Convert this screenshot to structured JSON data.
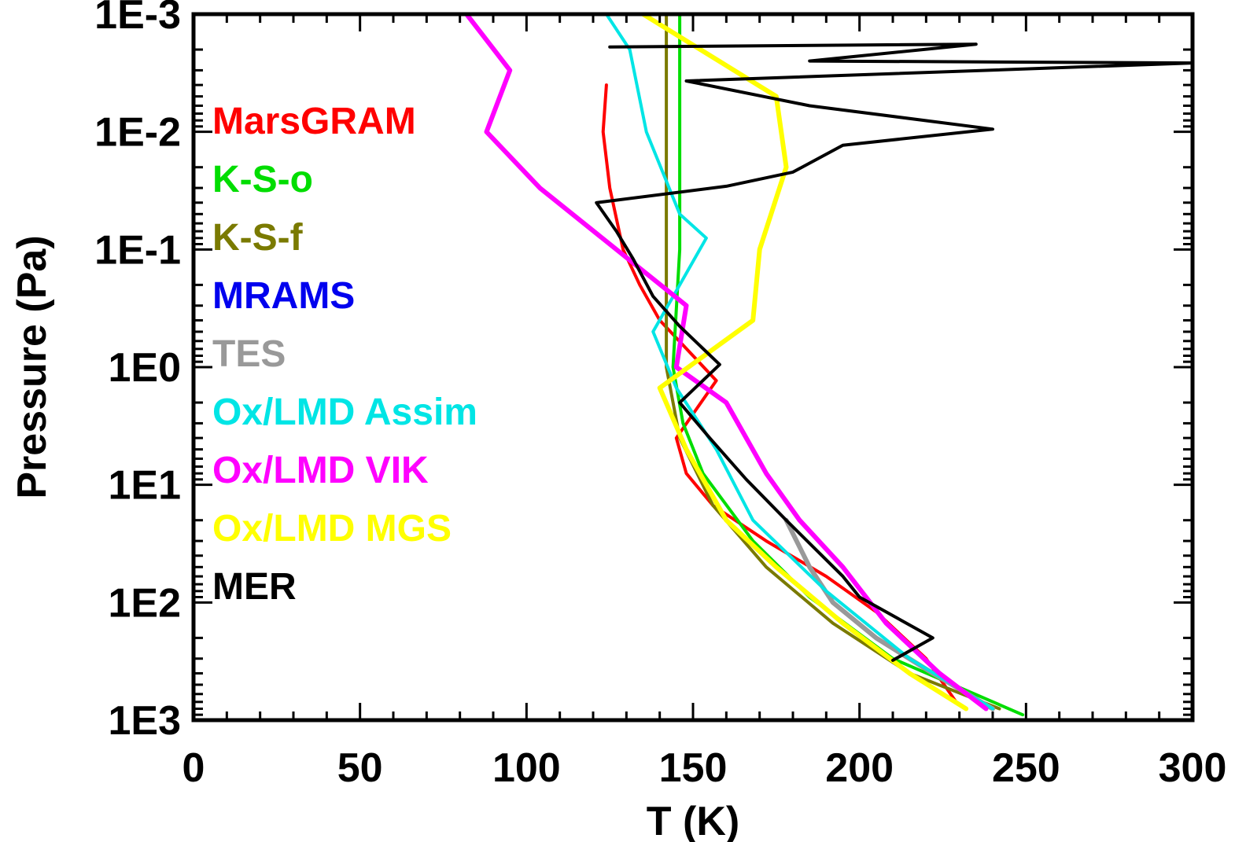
{
  "chart_data": {
    "type": "line",
    "title": "",
    "xlabel": "T (K)",
    "ylabel": "Pressure (Pa)",
    "xlim": [
      0,
      300
    ],
    "ylim": [
      1000,
      0.001
    ],
    "y_scale": "log",
    "y_reversed": true,
    "xticks": [
      0,
      50,
      100,
      150,
      200,
      250,
      300
    ],
    "xtick_labels": [
      "0",
      "50",
      "100",
      "150",
      "200",
      "250",
      "300"
    ],
    "yticks": [
      0.001,
      0.01,
      0.1,
      1,
      10,
      100,
      1000
    ],
    "ytick_labels": [
      "1E-3",
      "1E-2",
      "1E-1",
      "1E0",
      "1E1",
      "1E2",
      "1E3"
    ],
    "grid": false,
    "legend_position": "left",
    "series": [
      {
        "name": "MarsGRAM",
        "color": "#ff0000",
        "points": [
          [
            124,
            0.004
          ],
          [
            123,
            0.01
          ],
          [
            125,
            0.03
          ],
          [
            129,
            0.1
          ],
          [
            134,
            0.2
          ],
          [
            140,
            0.4
          ],
          [
            150,
            0.8
          ],
          [
            157,
            1.3
          ],
          [
            150,
            2.5
          ],
          [
            145,
            4
          ],
          [
            148,
            8
          ],
          [
            156,
            15
          ],
          [
            172,
            30
          ],
          [
            190,
            60
          ],
          [
            205,
            120
          ],
          [
            220,
            300
          ],
          [
            229,
            700
          ]
        ]
      },
      {
        "name": "K-S-o",
        "color": "#00dd00",
        "points": [
          [
            146,
            0.001
          ],
          [
            146,
            0.01
          ],
          [
            146,
            0.1
          ],
          [
            144,
            1
          ],
          [
            147,
            3
          ],
          [
            153,
            8
          ],
          [
            168,
            30
          ],
          [
            185,
            90
          ],
          [
            210,
            300
          ],
          [
            249,
            900
          ]
        ]
      },
      {
        "name": "K-S-f",
        "color": "#7a7a00",
        "points": [
          [
            142,
            0.001
          ],
          [
            142,
            0.01
          ],
          [
            142,
            0.1
          ],
          [
            142,
            1
          ],
          [
            146,
            4
          ],
          [
            156,
            15
          ],
          [
            172,
            50
          ],
          [
            192,
            150
          ],
          [
            215,
            400
          ],
          [
            242,
            800
          ]
        ]
      },
      {
        "name": "MRAMS",
        "color": "#0000ee",
        "points": []
      },
      {
        "name": "TES",
        "color": "#999999",
        "points": [
          [
            178,
            20
          ],
          [
            185,
            50
          ],
          [
            192,
            100
          ],
          [
            205,
            200
          ],
          [
            222,
            400
          ],
          [
            240,
            800
          ]
        ]
      },
      {
        "name": "Ox/LMD Assim",
        "color": "#00e5e5",
        "points": [
          [
            124,
            0.001
          ],
          [
            131,
            0.002
          ],
          [
            136,
            0.01
          ],
          [
            146,
            0.05
          ],
          [
            154,
            0.08
          ],
          [
            146,
            0.2
          ],
          [
            138,
            0.5
          ],
          [
            145,
            1.5
          ],
          [
            157,
            5
          ],
          [
            168,
            20
          ],
          [
            190,
            80
          ],
          [
            215,
            300
          ],
          [
            240,
            800
          ]
        ]
      },
      {
        "name": "Ox/LMD VIK",
        "color": "#ff00ff",
        "points": [
          [
            82,
            0.001
          ],
          [
            95,
            0.003
          ],
          [
            88,
            0.01
          ],
          [
            104,
            0.03
          ],
          [
            127,
            0.1
          ],
          [
            148,
            0.3
          ],
          [
            145,
            1
          ],
          [
            160,
            2
          ],
          [
            172,
            8
          ],
          [
            182,
            20
          ],
          [
            195,
            50
          ],
          [
            208,
            150
          ],
          [
            224,
            400
          ],
          [
            238,
            800
          ]
        ]
      },
      {
        "name": "Ox/LMD MGS",
        "color": "#ffff00",
        "points": [
          [
            135,
            0.001
          ],
          [
            175,
            0.005
          ],
          [
            178,
            0.02
          ],
          [
            170,
            0.1
          ],
          [
            168,
            0.4
          ],
          [
            140,
            1.5
          ],
          [
            148,
            5
          ],
          [
            160,
            20
          ],
          [
            175,
            50
          ],
          [
            195,
            150
          ],
          [
            215,
            400
          ],
          [
            232,
            800
          ]
        ]
      },
      {
        "name": "MER",
        "color": "#000000",
        "points": [
          [
            125,
            0.0019
          ],
          [
            235,
            0.0018
          ],
          [
            185,
            0.0025
          ],
          [
            300,
            0.0026
          ],
          [
            148,
            0.0037
          ],
          [
            185,
            0.006
          ],
          [
            240,
            0.0095
          ],
          [
            195,
            0.013
          ],
          [
            180,
            0.022
          ],
          [
            160,
            0.029
          ],
          [
            121,
            0.04
          ],
          [
            127,
            0.07
          ],
          [
            132,
            0.12
          ],
          [
            138,
            0.25
          ],
          [
            146,
            0.45
          ],
          [
            158,
            0.95
          ],
          [
            146,
            2
          ],
          [
            155,
            4
          ],
          [
            166,
            9
          ],
          [
            178,
            20
          ],
          [
            195,
            60
          ],
          [
            200,
            90
          ],
          [
            222,
            200
          ],
          [
            210,
            310
          ]
        ]
      }
    ]
  }
}
